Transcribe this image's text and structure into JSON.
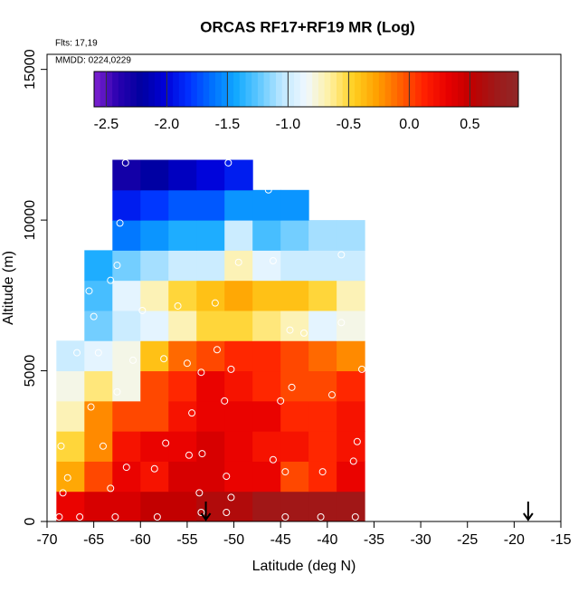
{
  "chart_data": {
    "type": "heatmap",
    "title": "ORCAS RF17+RF19 MR (Log)",
    "annotations": [
      "Flts: 17,19",
      "MMDD: 0224,0229"
    ],
    "xlabel": "Latitude (deg N)",
    "ylabel": "Altitude (m)",
    "xlim": [
      -70,
      -15
    ],
    "xticks": [
      -70,
      -65,
      -60,
      -55,
      -50,
      -45,
      -40,
      -35,
      -30,
      -25,
      -20,
      -15
    ],
    "ylim": [
      0,
      15500
    ],
    "yticks": [
      0,
      5000,
      10000,
      15000
    ],
    "xbins": [
      -69,
      -66,
      -63,
      -60,
      -57,
      -54,
      -51,
      -48,
      -45,
      -42,
      -39,
      -36
    ],
    "ybins": [
      0,
      1000,
      2000,
      3000,
      4000,
      5000,
      6000,
      7000,
      8000,
      9000,
      10000,
      11000,
      12000
    ],
    "z": [
      [
        0.3,
        0.4,
        0.4,
        0.5,
        0.5,
        0.6,
        0.6,
        0.7,
        0.7,
        0.7,
        0.7
      ],
      [
        -0.3,
        0.0,
        0.3,
        0.2,
        0.4,
        0.4,
        0.3,
        0.3,
        0.0,
        0.1,
        0.3
      ],
      [
        -0.5,
        -0.2,
        0.2,
        0.3,
        0.3,
        0.4,
        0.3,
        0.2,
        0.2,
        0.1,
        0.2
      ],
      [
        -0.7,
        -0.2,
        0.0,
        0.0,
        0.2,
        0.3,
        0.3,
        0.3,
        0.1,
        0.1,
        0.2
      ],
      [
        -0.8,
        -0.6,
        -0.8,
        0.0,
        0.1,
        0.3,
        0.2,
        0.1,
        0.0,
        0.0,
        0.1
      ],
      [
        -1.0,
        -0.9,
        -0.8,
        -0.4,
        -0.1,
        0.0,
        0.1,
        0.1,
        0.0,
        -0.1,
        -0.2
      ],
      [
        null,
        -1.2,
        -1.0,
        -0.9,
        -0.7,
        -0.5,
        -0.5,
        -0.6,
        -0.7,
        -0.9,
        -0.8
      ],
      [
        null,
        -1.3,
        -0.9,
        -0.7,
        -0.5,
        -0.4,
        -0.3,
        -0.4,
        -0.4,
        -0.5,
        -0.7
      ],
      [
        null,
        -1.4,
        -1.2,
        -1.1,
        -1.0,
        -1.0,
        -0.7,
        -0.9,
        -1.0,
        -1.0,
        -1.0
      ],
      [
        null,
        null,
        -1.6,
        -1.5,
        -1.4,
        -1.4,
        -1.0,
        -1.3,
        -1.2,
        -1.1,
        -1.1
      ],
      [
        null,
        null,
        -1.9,
        -1.8,
        -1.7,
        -1.7,
        -1.5,
        -1.5,
        -1.5,
        null,
        null
      ],
      [
        null,
        null,
        -2.3,
        -2.2,
        -2.1,
        -2.0,
        -1.9,
        null,
        null,
        null,
        null
      ]
    ],
    "clim": [
      -2.6,
      0.9
    ],
    "cticks": [
      {
        "value": -2.5,
        "label": "-2.5"
      },
      {
        "value": -2,
        "label": "-2.0"
      },
      {
        "value": -1.5,
        "label": "-1.5"
      },
      {
        "value": -1,
        "label": "-1.0"
      },
      {
        "value": -0.5,
        "label": "-0.5"
      },
      {
        "value": 0,
        "label": "0.0"
      },
      0.5
    ],
    "colormap": [
      "#7f22d0",
      "#2a00b0",
      "#0000a0",
      "#0000d8",
      "#0030ff",
      "#0070ff",
      "#10a8ff",
      "#60c8ff",
      "#c0e8ff",
      "#f0f8ff",
      "#fff0a0",
      "#ffd020",
      "#ffa000",
      "#ff6000",
      "#ff2000",
      "#e80000",
      "#c00000",
      "#a01818",
      "#902828"
    ],
    "points_x": [
      -61.6,
      -50.6,
      -46.3,
      -62.2,
      -35.1,
      -62.5,
      -49.5,
      -45.8,
      -38.5,
      -63.2,
      -65.5,
      -52,
      -59.8,
      -56,
      -65,
      -66.5,
      -44,
      -42.5,
      -38.5,
      -66.8,
      -64.5,
      -51.8,
      -57.5,
      -55,
      -60.8,
      -53.5,
      -50.3,
      -36.3,
      -43.8,
      -39.5,
      -62.5,
      -65.3,
      -45,
      -51,
      -54.5,
      -57.3,
      -64,
      -68.5,
      -54.8,
      -53.4,
      -36.8,
      -45.8,
      -61.5,
      -58.5,
      -37.2,
      -40.5,
      -44.5,
      -50.8,
      -67.8,
      -63.2,
      -68.3,
      -53.7,
      -50.3,
      -66.5,
      -62.7,
      -58.2,
      -53.5,
      -50.8,
      -44.5,
      -40.7,
      -37,
      -68.7
    ],
    "points_y": [
      11900,
      11900,
      11000,
      9900,
      9900,
      8500,
      8600,
      8650,
      8850,
      8000,
      7650,
      7250,
      7000,
      7150,
      6800,
      6500,
      6350,
      6250,
      6600,
      5600,
      5600,
      5700,
      5400,
      5250,
      5350,
      4950,
      5050,
      5050,
      4450,
      4200,
      4300,
      3800,
      4000,
      4000,
      3600,
      2600,
      2500,
      2500,
      2200,
      2250,
      2650,
      2050,
      1800,
      1750,
      2000,
      1650,
      1650,
      1500,
      1450,
      1100,
      950,
      950,
      800,
      150,
      150,
      150,
      300,
      300,
      150,
      150,
      150,
      150
    ],
    "arrows_x": [
      -53,
      -18.5
    ]
  }
}
